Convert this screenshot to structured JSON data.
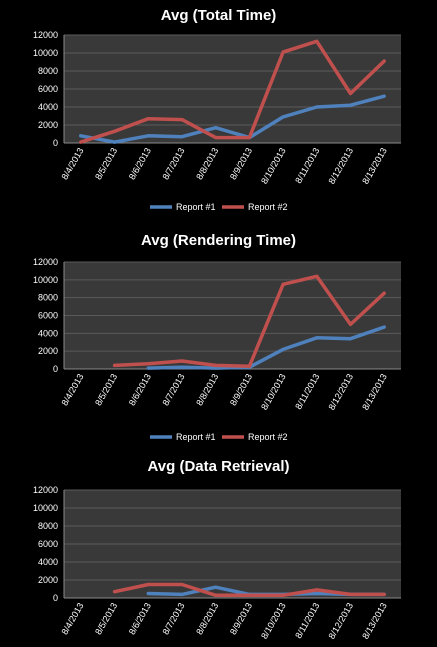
{
  "chart_data": [
    {
      "type": "line",
      "title": "Avg (Total Time)",
      "categories": [
        "8/4/2013",
        "8/5/2013",
        "8/6/2013",
        "8/7/2013",
        "8/8/2013",
        "8/9/2013",
        "8/10/2013",
        "8/11/2013",
        "8/12/2013",
        "8/13/2013"
      ],
      "ylim": [
        0,
        12000
      ],
      "yticks": [
        "0",
        "2000",
        "4000",
        "6000",
        "8000",
        "10000",
        "12000"
      ],
      "grid": true,
      "legend": "bottom",
      "series": [
        {
          "name": "Report #1",
          "color": "#4f81bd",
          "values": [
            800,
            100,
            800,
            700,
            1700,
            600,
            2900,
            4000,
            4200,
            5200
          ]
        },
        {
          "name": "Report #2",
          "color": "#c0504d",
          "values": [
            100,
            1300,
            2700,
            2600,
            600,
            600,
            10100,
            11300,
            5500,
            9100
          ]
        }
      ]
    },
    {
      "type": "line",
      "title": "Avg (Rendering Time)",
      "categories": [
        "8/4/2013",
        "8/5/2013",
        "8/6/2013",
        "8/7/2013",
        "8/8/2013",
        "8/9/2013",
        "8/10/2013",
        "8/11/2013",
        "8/12/2013",
        "8/13/2013"
      ],
      "ylim": [
        0,
        12000
      ],
      "yticks": [
        "0",
        "2000",
        "4000",
        "6000",
        "8000",
        "10000",
        "12000"
      ],
      "grid": true,
      "legend": "bottom",
      "series": [
        {
          "name": "Report #1",
          "color": "#4f81bd",
          "values": [
            null,
            null,
            100,
            200,
            100,
            200,
            2200,
            3500,
            3400,
            4700
          ]
        },
        {
          "name": "Report #2",
          "color": "#c0504d",
          "values": [
            null,
            400,
            600,
            900,
            400,
            300,
            9500,
            10400,
            5000,
            8500
          ]
        }
      ]
    },
    {
      "type": "line",
      "title": "Avg (Data Retrieval)",
      "categories": [
        "8/4/2013",
        "8/5/2013",
        "8/6/2013",
        "8/7/2013",
        "8/8/2013",
        "8/9/2013",
        "8/10/2013",
        "8/11/2013",
        "8/12/2013",
        "8/13/2013"
      ],
      "ylim": [
        0,
        12000
      ],
      "yticks": [
        "0",
        "2000",
        "4000",
        "6000",
        "8000",
        "10000",
        "12000"
      ],
      "grid": true,
      "legend": "none",
      "series": [
        {
          "name": "Report #1",
          "color": "#4f81bd",
          "values": [
            null,
            null,
            500,
            400,
            1200,
            400,
            400,
            500,
            400,
            400
          ]
        },
        {
          "name": "Report #2",
          "color": "#c0504d",
          "values": [
            null,
            700,
            1500,
            1500,
            300,
            300,
            300,
            900,
            400,
            400
          ]
        }
      ]
    }
  ]
}
